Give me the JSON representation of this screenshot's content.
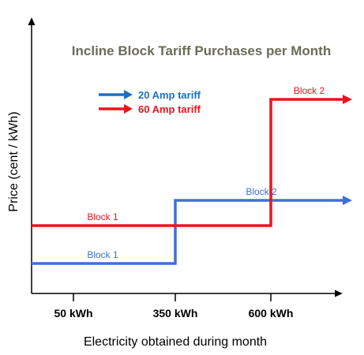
{
  "chart_data": {
    "type": "line",
    "title": "Incline Block Tariff Purchases per Month",
    "xlabel": "Electricity obtained during month",
    "ylabel": "Price (cent / kWh)",
    "x_ticks": [
      "50 kWh",
      "350 kWh",
      "600 kWh"
    ],
    "legend": [
      {
        "name": "20 Amp tariff",
        "color": "#1f6fc1"
      },
      {
        "name": "60 Amp tariff",
        "color": "#e8151b"
      }
    ],
    "series": [
      {
        "name": "20 Amp tariff",
        "color": "#3f6fd8",
        "blocks": [
          {
            "label": "Block 1",
            "from": 0,
            "to": 350,
            "level": 1
          },
          {
            "label": "Block 2",
            "from": 350,
            "to": null,
            "level": 2
          }
        ]
      },
      {
        "name": "60 Amp tariff",
        "color": "#e8151b",
        "blocks": [
          {
            "label": "Block 1",
            "from": 0,
            "to": 600,
            "level": 1.6
          },
          {
            "label": "Block 2",
            "from": 600,
            "to": null,
            "level": 3.6
          }
        ]
      }
    ],
    "title_color": "#6b6b5a"
  }
}
